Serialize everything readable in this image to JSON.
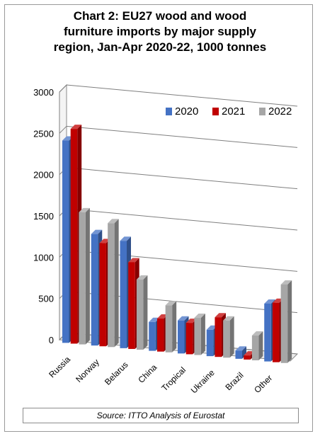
{
  "chart_data": {
    "type": "bar",
    "title": [
      "Chart 2: EU27 wood and wood",
      "furniture imports by major supply",
      "region, Jan-Apr 2020-22, 1000 tonnes"
    ],
    "categories": [
      "Russia",
      "Norway",
      "Belarus",
      "China",
      "Tropical",
      "Ukraine",
      "Brazil",
      "Other"
    ],
    "series": [
      {
        "name": "2020",
        "color": "#4472C4",
        "values": [
          2450,
          1350,
          1300,
          350,
          400,
          320,
          100,
          700
        ]
      },
      {
        "name": "2021",
        "color": "#C00000",
        "values": [
          2600,
          1250,
          1050,
          400,
          380,
          480,
          50,
          720
        ]
      },
      {
        "name": "2022",
        "color": "#A6A6A6",
        "values": [
          1600,
          1500,
          850,
          570,
          450,
          450,
          300,
          950
        ]
      }
    ],
    "yticks": [
      "0",
      "500",
      "1000",
      "1500",
      "2000",
      "2500",
      "3000"
    ],
    "ylim": [
      0,
      3000
    ],
    "grid": true,
    "legend": "top-right",
    "style": "3d-clustered-column"
  },
  "source": "Source: ITTO Analysis of Eurostat"
}
